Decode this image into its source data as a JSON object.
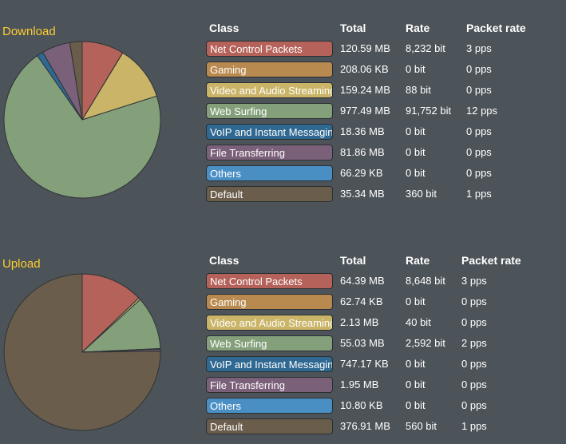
{
  "download": {
    "title": "Download",
    "headers": {
      "class": "Class",
      "total": "Total",
      "rate": "Rate",
      "packet_rate": "Packet rate"
    },
    "rows": [
      {
        "label": "Net Control Packets",
        "total": "120.59 MB",
        "rate": "8,232 bit",
        "pps": "3 pps",
        "color": "#b5625a"
      },
      {
        "label": "Gaming",
        "total": "208.06 KB",
        "rate": "0 bit",
        "pps": "0 pps",
        "color": "#b98a4f"
      },
      {
        "label": "Video and Audio Streaming",
        "total": "159.24 MB",
        "rate": "88 bit",
        "pps": "0 pps",
        "color": "#c9b467"
      },
      {
        "label": "Web Surfing",
        "total": "977.49 MB",
        "rate": "91,752 bit",
        "pps": "12 pps",
        "color": "#84a07a"
      },
      {
        "label": "VoIP and Instant Messaging",
        "total": "18.36 MB",
        "rate": "0 bit",
        "pps": "0 pps",
        "color": "#2f6891"
      },
      {
        "label": "File Transferring",
        "total": "81.86 MB",
        "rate": "0 bit",
        "pps": "0 pps",
        "color": "#7b6079"
      },
      {
        "label": "Others",
        "total": "66.29 KB",
        "rate": "0 bit",
        "pps": "0 pps",
        "color": "#4a8fc4"
      },
      {
        "label": "Default",
        "total": "35.34 MB",
        "rate": "360 bit",
        "pps": "1 pps",
        "color": "#6b5d4c"
      }
    ],
    "chart_data": {
      "type": "pie",
      "categories": [
        "Net Control Packets",
        "Gaming",
        "Video and Audio Streaming",
        "Web Surfing",
        "VoIP and Instant Messaging",
        "File Transferring",
        "Others",
        "Default"
      ],
      "values": [
        120.59,
        0.2,
        159.24,
        977.49,
        18.36,
        81.86,
        0.06,
        35.34
      ],
      "units": "MB"
    }
  },
  "upload": {
    "title": "Upload",
    "headers": {
      "class": "Class",
      "total": "Total",
      "rate": "Rate",
      "packet_rate": "Packet rate"
    },
    "rows": [
      {
        "label": "Net Control Packets",
        "total": "64.39 MB",
        "rate": "8,648 bit",
        "pps": "3 pps",
        "color": "#b5625a"
      },
      {
        "label": "Gaming",
        "total": "62.74 KB",
        "rate": "0 bit",
        "pps": "0 pps",
        "color": "#b98a4f"
      },
      {
        "label": "Video and Audio Streaming",
        "total": "2.13 MB",
        "rate": "40 bit",
        "pps": "0 pps",
        "color": "#c9b467"
      },
      {
        "label": "Web Surfing",
        "total": "55.03 MB",
        "rate": "2,592 bit",
        "pps": "2 pps",
        "color": "#84a07a"
      },
      {
        "label": "VoIP and Instant Messaging",
        "total": "747.17 KB",
        "rate": "0 bit",
        "pps": "0 pps",
        "color": "#2f6891"
      },
      {
        "label": "File Transferring",
        "total": "1.95 MB",
        "rate": "0 bit",
        "pps": "0 pps",
        "color": "#7b6079"
      },
      {
        "label": "Others",
        "total": "10.80 KB",
        "rate": "0 bit",
        "pps": "0 pps",
        "color": "#4a8fc4"
      },
      {
        "label": "Default",
        "total": "376.91 MB",
        "rate": "560 bit",
        "pps": "1 pps",
        "color": "#6b5d4c"
      }
    ],
    "chart_data": {
      "type": "pie",
      "categories": [
        "Net Control Packets",
        "Gaming",
        "Video and Audio Streaming",
        "Web Surfing",
        "VoIP and Instant Messaging",
        "File Transferring",
        "Others",
        "Default"
      ],
      "values": [
        64.39,
        0.06,
        2.13,
        55.03,
        0.73,
        1.95,
        0.01,
        376.91
      ],
      "units": "MB"
    }
  }
}
